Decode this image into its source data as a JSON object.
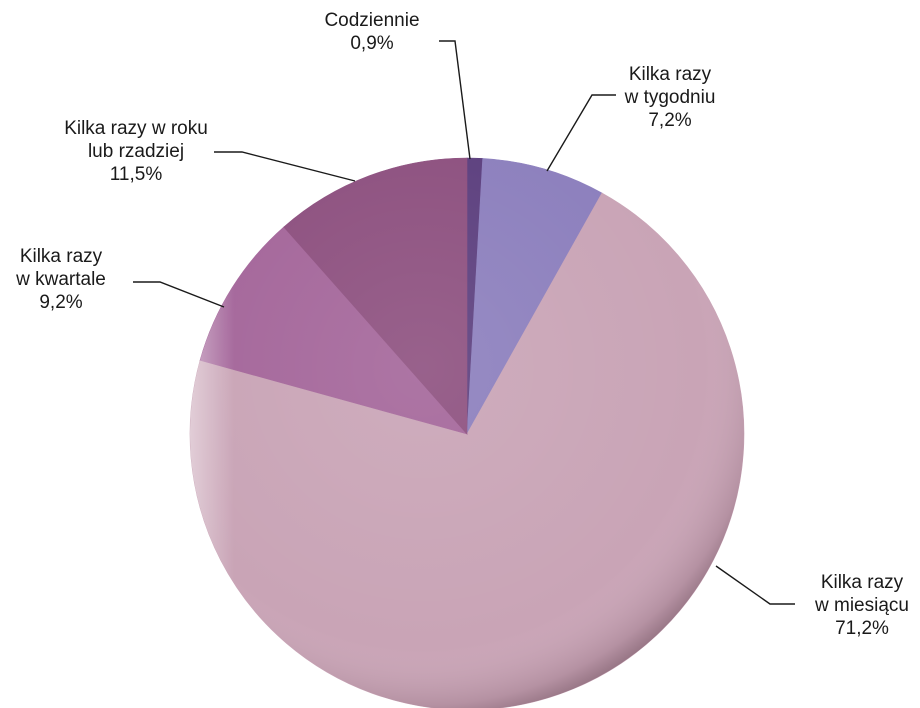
{
  "chart_data": {
    "type": "pie",
    "slices": [
      {
        "lines": [
          "Codziennie"
        ],
        "value": 0.9,
        "value_label": "0,9%",
        "color": "#5c3f7e"
      },
      {
        "lines": [
          "Kilka razy",
          "w tygodniu"
        ],
        "value": 7.2,
        "value_label": "7,2%",
        "color": "#8c7fbd"
      },
      {
        "lines": [
          "Kilka razy",
          "w miesiącu"
        ],
        "value": 71.2,
        "value_label": "71,2%",
        "color": "#c9a4b6"
      },
      {
        "lines": [
          "Kilka razy",
          "w kwartale"
        ],
        "value": 9.2,
        "value_label": "9,2%",
        "color": "#a4669a"
      },
      {
        "lines": [
          "Kilka razy w roku",
          "lub rzadziej"
        ],
        "value": 11.5,
        "value_label": "11,5%",
        "color": "#8d507f"
      }
    ]
  }
}
